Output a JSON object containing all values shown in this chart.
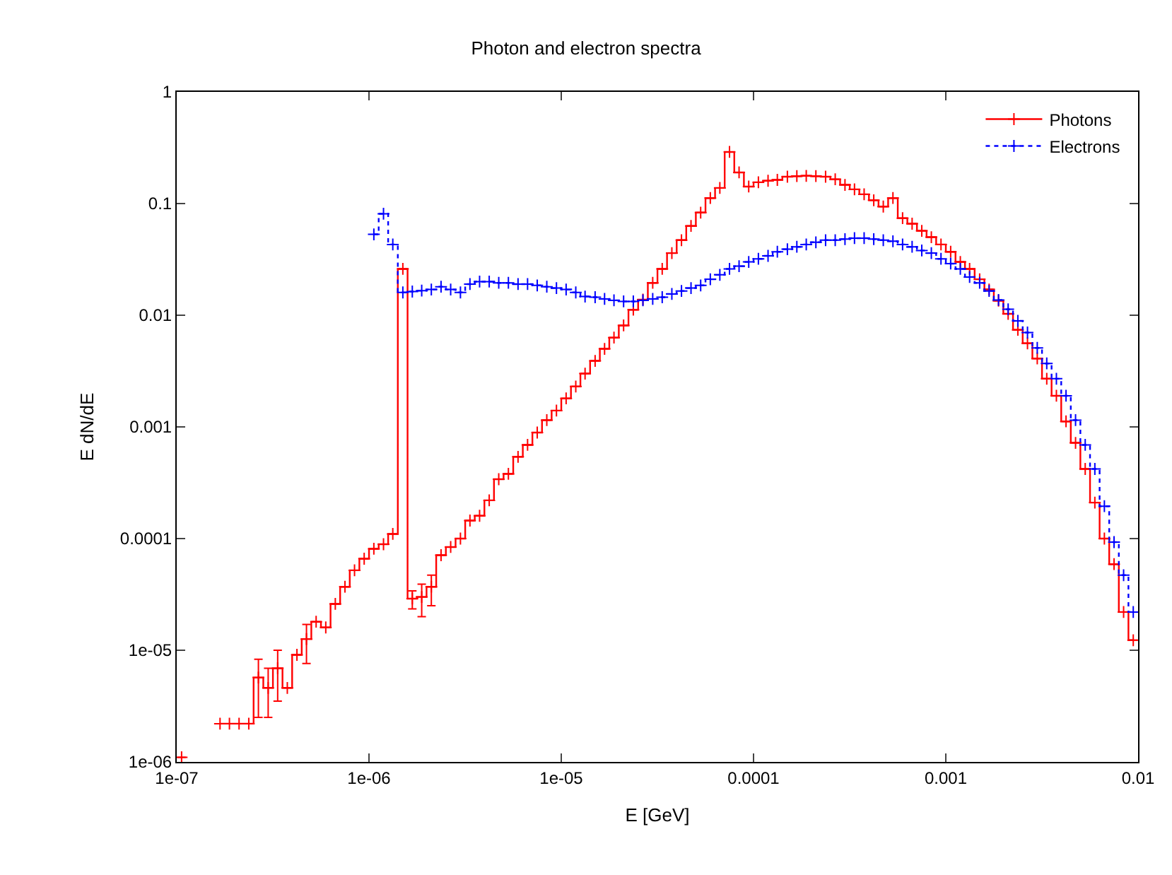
{
  "chart_data": {
    "type": "step",
    "title": "Photon and electron spectra",
    "xlabel": "E [GeV]",
    "ylabel": "E dN/dE",
    "log": "xy",
    "legend": "top right",
    "marker": "cross",
    "xlim": [
      1e-07,
      0.01
    ],
    "xticks": [
      {
        "value": 1e-07,
        "label": "1e-07"
      },
      {
        "value": 1e-06,
        "label": "1e-06"
      },
      {
        "value": 1e-05,
        "label": "1e-05"
      },
      0.0001,
      0.001,
      0.01
    ],
    "ylim": [
      1e-06,
      1
    ],
    "yticks": [
      {
        "value": 1e-06,
        "label": "1e-06"
      },
      {
        "value": 1e-05,
        "label": "1e-05"
      },
      0.0001,
      0.001,
      0.01,
      0.1,
      1
    ],
    "x": [
      1.06e-07,
      1.19e-07,
      1.33e-07,
      1.5e-07,
      1.68e-07,
      1.88e-07,
      2.11e-07,
      2.37e-07,
      2.66e-07,
      2.99e-07,
      3.35e-07,
      3.76e-07,
      4.22e-07,
      4.73e-07,
      5.31e-07,
      5.96e-07,
      6.68e-07,
      7.5e-07,
      8.41e-07,
      9.44e-07,
      1.06e-06,
      1.19e-06,
      1.33e-06,
      1.5e-06,
      1.68e-06,
      1.88e-06,
      2.11e-06,
      2.37e-06,
      2.66e-06,
      2.99e-06,
      3.35e-06,
      3.76e-06,
      4.22e-06,
      4.73e-06,
      5.31e-06,
      5.96e-06,
      6.68e-06,
      7.5e-06,
      8.41e-06,
      9.44e-06,
      1.06e-05,
      1.19e-05,
      1.33e-05,
      1.5e-05,
      1.68e-05,
      1.88e-05,
      2.11e-05,
      2.37e-05,
      2.66e-05,
      2.99e-05,
      3.35e-05,
      3.76e-05,
      4.22e-05,
      4.73e-05,
      5.31e-05,
      5.96e-05,
      6.68e-05,
      7.5e-05,
      8.41e-05,
      9.44e-05,
      0.000106,
      0.000119,
      0.000133,
      0.00015,
      0.000168,
      0.000188,
      0.000211,
      0.000237,
      0.000266,
      0.000299,
      0.000335,
      0.000376,
      0.000422,
      0.000473,
      0.000531,
      0.000596,
      0.000668,
      0.00075,
      0.000841,
      0.000944,
      0.00106,
      0.00119,
      0.00133,
      0.0015,
      0.00168,
      0.00188,
      0.00211,
      0.00237,
      0.00266,
      0.00299,
      0.00335,
      0.00376,
      0.00422,
      0.00473,
      0.00531,
      0.00596,
      0.00668,
      0.0075,
      0.00841,
      0.00944
    ],
    "series": [
      {
        "name": "Photons",
        "color": "#ff0000",
        "line_style": "solid",
        "values": [
          1.1e-06,
          null,
          null,
          null,
          2.2e-06,
          2.2e-06,
          2.2e-06,
          2.2e-06,
          5.7e-06,
          4.6e-06,
          6.9e-06,
          4.6e-06,
          9.1e-06,
          1.26e-05,
          1.8e-05,
          1.6e-05,
          2.6e-05,
          3.7e-05,
          5.2e-05,
          6.6e-05,
          8.1e-05,
          8.9e-05,
          0.00011,
          0.026,
          2.9e-05,
          3e-05,
          3.7e-05,
          7.1e-05,
          8.4e-05,
          0.0001,
          0.000145,
          0.00016,
          0.00022,
          0.00034,
          0.00038,
          0.00054,
          0.00069,
          0.00089,
          0.00115,
          0.0014,
          0.0018,
          0.0023,
          0.003,
          0.0039,
          0.005,
          0.0063,
          0.0081,
          0.0112,
          0.0138,
          0.0195,
          0.026,
          0.036,
          0.047,
          0.063,
          0.083,
          0.112,
          0.138,
          0.29,
          0.19,
          0.142,
          0.155,
          0.16,
          0.163,
          0.174,
          0.176,
          0.177,
          0.176,
          0.174,
          0.165,
          0.147,
          0.134,
          0.121,
          0.107,
          0.094,
          0.112,
          0.074,
          0.066,
          0.057,
          0.05,
          0.043,
          0.037,
          0.03,
          0.026,
          0.021,
          0.017,
          0.0135,
          0.0103,
          0.0074,
          0.0056,
          0.0041,
          0.0027,
          0.0019,
          0.00112,
          0.00072,
          0.00042,
          0.00021,
          0.0001,
          5.9e-05,
          2.2e-05,
          1.23e-05
        ],
        "errors": [
          null,
          null,
          null,
          null,
          null,
          null,
          null,
          null,
          [
            2.5e-06,
            8.3e-06
          ],
          [
            2.5e-06,
            6.9e-06
          ],
          [
            3.5e-06,
            1e-05
          ],
          null,
          null,
          [
            7.6e-06,
            1.7e-05
          ],
          null,
          null,
          null,
          null,
          null,
          null,
          null,
          null,
          null,
          null,
          [
            2.35e-05,
            3.4e-05
          ],
          [
            2e-05,
            3.9e-05
          ],
          [
            2.5e-05,
            4.7e-05
          ],
          null,
          null,
          null,
          null,
          null,
          null,
          null,
          null,
          null,
          null,
          null,
          null,
          null,
          null,
          null,
          null,
          null,
          null,
          null,
          null,
          null,
          null,
          null,
          null,
          null,
          null,
          null,
          null,
          null,
          null,
          null,
          null,
          null,
          null,
          null,
          null,
          null,
          null,
          null,
          null,
          null,
          null,
          null,
          null,
          null,
          null,
          null,
          null,
          null,
          null,
          null,
          null,
          null,
          null,
          null,
          null,
          null,
          null,
          null,
          null,
          null,
          null,
          null,
          null,
          null,
          null,
          null,
          null,
          null,
          null,
          null,
          null,
          null
        ]
      },
      {
        "name": "Electrons",
        "color": "#0000ff",
        "line_style": "dotted",
        "values": [
          null,
          null,
          null,
          null,
          null,
          null,
          null,
          null,
          null,
          null,
          null,
          null,
          null,
          null,
          null,
          null,
          null,
          null,
          null,
          null,
          0.053,
          0.081,
          0.043,
          0.016,
          0.0163,
          0.0166,
          0.017,
          0.018,
          0.017,
          0.016,
          0.019,
          0.02,
          0.02,
          0.0195,
          0.0195,
          0.019,
          0.019,
          0.0185,
          0.018,
          0.0175,
          0.017,
          0.016,
          0.0147,
          0.0145,
          0.014,
          0.0136,
          0.0133,
          0.0133,
          0.0136,
          0.014,
          0.0145,
          0.0155,
          0.0165,
          0.0175,
          0.0185,
          0.021,
          0.023,
          0.026,
          0.0275,
          0.03,
          0.032,
          0.034,
          0.037,
          0.039,
          0.041,
          0.043,
          0.045,
          0.047,
          0.047,
          0.048,
          0.049,
          0.049,
          0.048,
          0.047,
          0.046,
          0.043,
          0.041,
          0.038,
          0.036,
          0.032,
          0.029,
          0.026,
          0.022,
          0.0195,
          0.0165,
          0.0137,
          0.0113,
          0.0089,
          0.007,
          0.0051,
          0.0037,
          0.0027,
          0.0019,
          0.00115,
          0.00069,
          0.00042,
          0.000195,
          9.3e-05,
          4.7e-05,
          2.2e-05
        ]
      }
    ]
  }
}
